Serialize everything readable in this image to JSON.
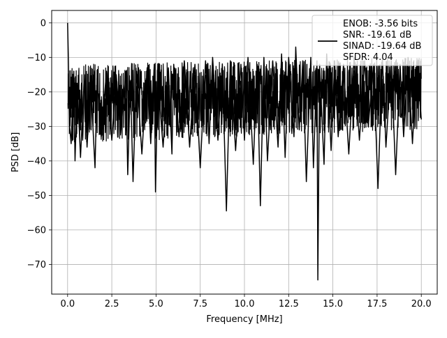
{
  "chart_data": {
    "type": "line",
    "title": "",
    "xlabel": "Frequency [MHz]",
    "ylabel": "PSD [dB]",
    "xlim": [
      -0.9,
      20.9
    ],
    "ylim": [
      -78.6,
      3.6
    ],
    "grid": true,
    "legend_position": "top-right",
    "legend_lines": [
      "ENOB: -3.56 bits",
      "SNR: -19.61 dB",
      "SINAD: -19.64 dB",
      "SFDR: 4.04"
    ],
    "xticks": [
      0.0,
      2.5,
      5.0,
      7.5,
      10.0,
      12.5,
      15.0,
      17.5,
      20.0
    ],
    "xtick_labels": [
      "0.0",
      "2.5",
      "5.0",
      "7.5",
      "10.0",
      "12.5",
      "15.0",
      "17.5",
      "20.0"
    ],
    "yticks": [
      0,
      -10,
      -20,
      -30,
      -40,
      -50,
      -60,
      -70
    ],
    "ytick_labels": [
      "0",
      "−10",
      "−20",
      "−30",
      "−40",
      "−50",
      "−60",
      "−70"
    ],
    "series": [
      {
        "color": "#000000",
        "x": [
          0.0,
          0.05,
          0.1,
          0.2,
          0.35,
          0.42,
          0.55,
          0.73,
          0.95,
          1.1,
          1.3,
          1.55,
          1.67,
          1.9,
          2.2,
          2.5,
          2.75,
          3.0,
          3.3,
          3.4,
          3.55,
          3.7,
          3.9,
          4.2,
          4.5,
          4.7,
          4.9,
          4.97,
          5.1,
          5.4,
          5.7,
          5.9,
          6.0,
          6.3,
          6.6,
          6.9,
          7.2,
          7.5,
          7.8,
          8.0,
          8.2,
          8.5,
          8.75,
          8.98,
          9.2,
          9.5,
          9.8,
          10.0,
          10.2,
          10.5,
          10.72,
          10.9,
          11.1,
          11.3,
          11.6,
          11.9,
          12.1,
          12.3,
          12.5,
          12.8,
          12.9,
          13.1,
          13.3,
          13.5,
          13.75,
          13.9,
          14.1,
          14.15,
          14.25,
          14.5,
          14.65,
          14.9,
          15.1,
          15.3,
          15.6,
          15.9,
          16.2,
          16.5,
          16.8,
          17.0,
          17.3,
          17.55,
          17.8,
          18.0,
          18.3,
          18.55,
          18.8,
          19.0,
          19.25,
          19.5,
          19.75,
          20.0
        ],
        "y": [
          0.0,
          -12,
          -29,
          -35,
          -14,
          -40,
          -18,
          -39,
          -15,
          -36,
          -17,
          -42,
          -16,
          -33,
          -14,
          -34,
          -15,
          -32,
          -14,
          -44,
          -17,
          -46,
          -14,
          -38,
          -13,
          -35,
          -12,
          -49,
          -16,
          -36,
          -13,
          -38,
          -12,
          -33,
          -11,
          -36,
          -12,
          -42,
          -11,
          -35,
          -10,
          -34,
          -12,
          -54.5,
          -11,
          -37,
          -12,
          -34,
          -10,
          -41,
          -12,
          -53,
          -10,
          -40,
          -11,
          -36,
          -9,
          -39,
          -10,
          -33,
          -7,
          -31,
          -11,
          -46,
          -10,
          -42,
          -11,
          -74.5,
          -12,
          -41,
          -9,
          -37,
          -11,
          -33,
          -12,
          -38,
          -10,
          -34,
          -11,
          -30,
          -12,
          -48,
          -10,
          -36,
          -11,
          -44,
          -12,
          -33,
          -10,
          -35,
          -11,
          -28
        ]
      }
    ]
  }
}
